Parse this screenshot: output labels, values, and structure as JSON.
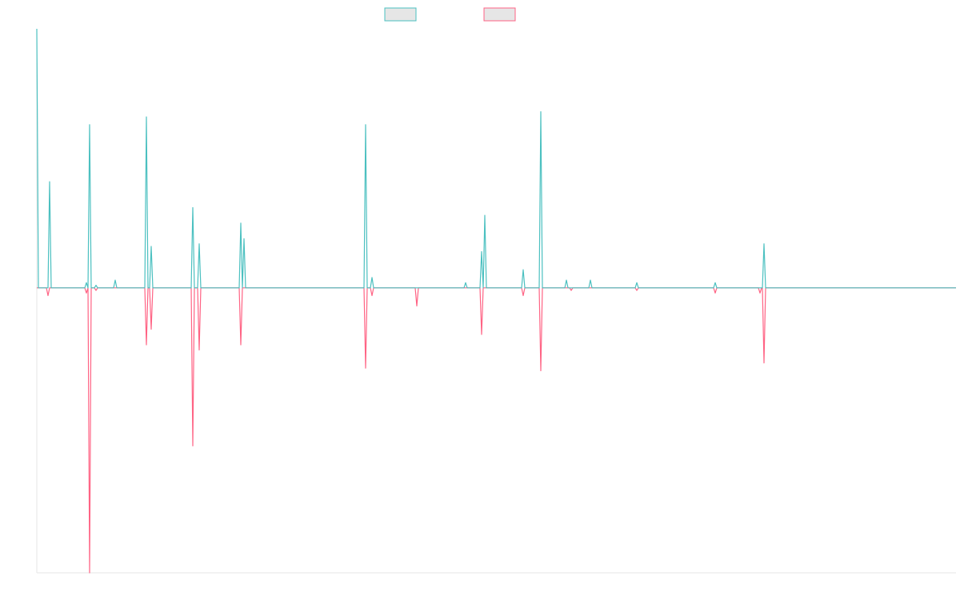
{
  "chart_data": {
    "type": "line",
    "grid": false,
    "xlim": [
      0,
      1149
    ],
    "ylim": [
      -1.1,
      1
    ],
    "x": [
      0,
      2,
      12,
      14,
      16,
      18,
      60,
      62,
      64,
      66,
      68,
      72,
      74,
      76,
      96,
      98,
      100,
      135,
      137,
      139,
      141,
      143,
      145,
      193,
      195,
      197,
      201,
      203,
      205,
      253,
      255,
      257,
      259,
      261,
      409,
      411,
      413,
      417,
      419,
      421,
      473,
      475,
      477,
      534,
      536,
      538,
      554,
      556,
      558,
      560,
      562,
      606,
      608,
      610,
      628,
      630,
      632,
      660,
      662,
      664,
      666,
      668,
      670,
      690,
      692,
      694,
      748,
      750,
      752,
      846,
      848,
      850,
      902,
      904,
      906,
      907,
      909,
      911,
      1149
    ],
    "series": [
      {
        "color": "#ff6384",
        "values": [
          0,
          0,
          0,
          -0.03,
          0,
          0,
          0,
          -0.02,
          0,
          -1.1,
          0,
          0,
          -0.01,
          0,
          0,
          0,
          0,
          0,
          -0.22,
          0,
          0,
          -0.16,
          0,
          0,
          -0.61,
          0,
          0,
          -0.24,
          0,
          0,
          -0.22,
          0,
          0,
          0,
          0,
          -0.31,
          0,
          0,
          -0.03,
          0,
          0,
          -0.07,
          0,
          0,
          0,
          0,
          0,
          -0.18,
          0,
          0,
          0,
          0,
          -0.03,
          0,
          0,
          -0.32,
          0,
          0,
          0,
          0,
          0,
          -0.01,
          0,
          0,
          0,
          0,
          0,
          -0.01,
          0,
          0,
          -0.02,
          0,
          0,
          -0.02,
          0,
          0,
          -0.29,
          0,
          0
        ]
      },
      {
        "color": "#4bc0c0",
        "values": [
          1,
          0,
          0,
          0,
          0.41,
          0,
          0,
          0.02,
          0,
          0.63,
          0,
          0,
          0.01,
          0,
          0,
          0.03,
          0,
          0,
          0.66,
          0,
          0,
          0.16,
          0,
          0,
          0.31,
          0,
          0,
          0.17,
          0,
          0,
          0.25,
          0,
          0.19,
          0,
          0,
          0.63,
          0,
          0,
          0.04,
          0,
          0,
          0,
          0,
          0,
          0.02,
          0,
          0,
          0.14,
          0,
          0.28,
          0,
          0,
          0.07,
          0,
          0,
          0.68,
          0,
          0,
          0.03,
          0,
          0,
          0,
          0,
          0,
          0.03,
          0,
          0,
          0.02,
          0,
          0,
          0.02,
          0,
          0,
          0,
          0,
          0,
          0.17,
          0,
          0
        ]
      }
    ]
  }
}
